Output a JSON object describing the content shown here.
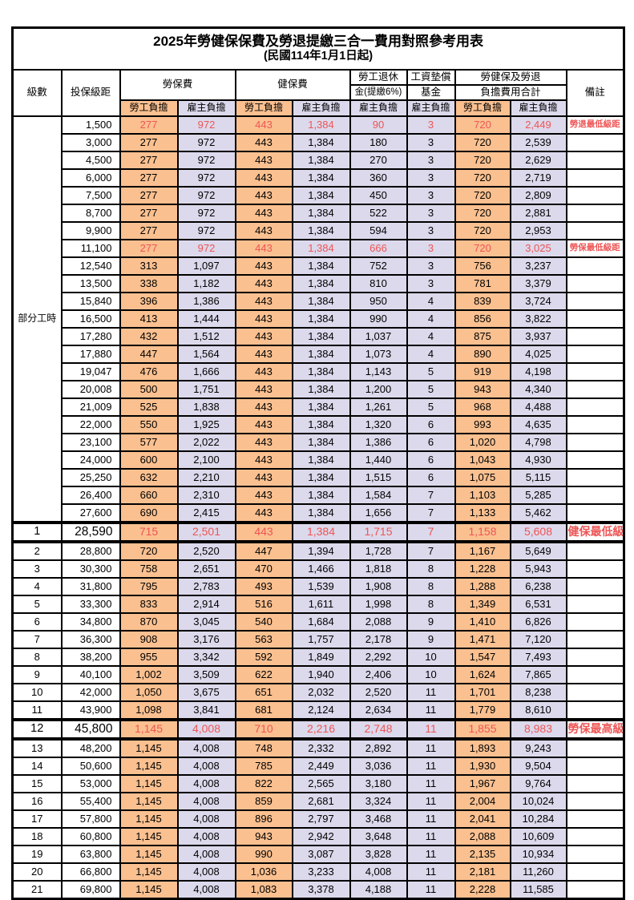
{
  "title": "2025年勞健保保費及勞退提繳三合一費用對照參考用表",
  "subtitle": "(民國114年1月1日起)",
  "header": {
    "level": "級數",
    "bracket": "投保級距",
    "labor_ins": "勞保費",
    "health_ins": "健保費",
    "pension_line1": "勞工退休",
    "pension_line2": "金(提繳6%)",
    "wage_fund_line1": "工資墊償",
    "wage_fund_line2": "基金",
    "total_line1": "勞健保及勞退",
    "total_line2": "負擔費用合計",
    "remark": "備註",
    "employee": "勞工負擔",
    "employer": "雇主負擔"
  },
  "part_time_label": "部分工時",
  "part_time_rowspan": 23,
  "colors": {
    "employee_bg": "#FAC090",
    "employer_bg": "#DCD9EC",
    "highlight_red": "#EE5555",
    "border": "#000000"
  },
  "rows": [
    {
      "level": "",
      "bracket": "1,500",
      "values": [
        "277",
        "972",
        "443",
        "1,384",
        "90",
        "3",
        "720",
        "2,449"
      ],
      "remark": "勞退最低級距",
      "red": true
    },
    {
      "level": "",
      "bracket": "3,000",
      "values": [
        "277",
        "972",
        "443",
        "1,384",
        "180",
        "3",
        "720",
        "2,539"
      ],
      "remark": ""
    },
    {
      "level": "",
      "bracket": "4,500",
      "values": [
        "277",
        "972",
        "443",
        "1,384",
        "270",
        "3",
        "720",
        "2,629"
      ],
      "remark": ""
    },
    {
      "level": "",
      "bracket": "6,000",
      "values": [
        "277",
        "972",
        "443",
        "1,384",
        "360",
        "3",
        "720",
        "2,719"
      ],
      "remark": ""
    },
    {
      "level": "",
      "bracket": "7,500",
      "values": [
        "277",
        "972",
        "443",
        "1,384",
        "450",
        "3",
        "720",
        "2,809"
      ],
      "remark": ""
    },
    {
      "level": "",
      "bracket": "8,700",
      "values": [
        "277",
        "972",
        "443",
        "1,384",
        "522",
        "3",
        "720",
        "2,881"
      ],
      "remark": ""
    },
    {
      "level": "",
      "bracket": "9,900",
      "values": [
        "277",
        "972",
        "443",
        "1,384",
        "594",
        "3",
        "720",
        "2,953"
      ],
      "remark": ""
    },
    {
      "level": "",
      "bracket": "11,100",
      "values": [
        "277",
        "972",
        "443",
        "1,384",
        "666",
        "3",
        "720",
        "3,025"
      ],
      "remark": "勞保最低級距",
      "red": true
    },
    {
      "level": "",
      "bracket": "12,540",
      "values": [
        "313",
        "1,097",
        "443",
        "1,384",
        "752",
        "3",
        "756",
        "3,237"
      ],
      "remark": ""
    },
    {
      "level": "",
      "bracket": "13,500",
      "values": [
        "338",
        "1,182",
        "443",
        "1,384",
        "810",
        "3",
        "781",
        "3,379"
      ],
      "remark": ""
    },
    {
      "level": "",
      "bracket": "15,840",
      "values": [
        "396",
        "1,386",
        "443",
        "1,384",
        "950",
        "4",
        "839",
        "3,724"
      ],
      "remark": ""
    },
    {
      "level": "",
      "bracket": "16,500",
      "values": [
        "413",
        "1,444",
        "443",
        "1,384",
        "990",
        "4",
        "856",
        "3,822"
      ],
      "remark": ""
    },
    {
      "level": "",
      "bracket": "17,280",
      "values": [
        "432",
        "1,512",
        "443",
        "1,384",
        "1,037",
        "4",
        "875",
        "3,937"
      ],
      "remark": ""
    },
    {
      "level": "",
      "bracket": "17,880",
      "values": [
        "447",
        "1,564",
        "443",
        "1,384",
        "1,073",
        "4",
        "890",
        "4,025"
      ],
      "remark": ""
    },
    {
      "level": "",
      "bracket": "19,047",
      "values": [
        "476",
        "1,666",
        "443",
        "1,384",
        "1,143",
        "5",
        "919",
        "4,198"
      ],
      "remark": ""
    },
    {
      "level": "",
      "bracket": "20,008",
      "values": [
        "500",
        "1,751",
        "443",
        "1,384",
        "1,200",
        "5",
        "943",
        "4,340"
      ],
      "remark": ""
    },
    {
      "level": "",
      "bracket": "21,009",
      "values": [
        "525",
        "1,838",
        "443",
        "1,384",
        "1,261",
        "5",
        "968",
        "4,488"
      ],
      "remark": ""
    },
    {
      "level": "",
      "bracket": "22,000",
      "values": [
        "550",
        "1,925",
        "443",
        "1,384",
        "1,320",
        "6",
        "993",
        "4,635"
      ],
      "remark": ""
    },
    {
      "level": "",
      "bracket": "23,100",
      "values": [
        "577",
        "2,022",
        "443",
        "1,384",
        "1,386",
        "6",
        "1,020",
        "4,798"
      ],
      "remark": ""
    },
    {
      "level": "",
      "bracket": "24,000",
      "values": [
        "600",
        "2,100",
        "443",
        "1,384",
        "1,440",
        "6",
        "1,043",
        "4,930"
      ],
      "remark": ""
    },
    {
      "level": "",
      "bracket": "25,250",
      "values": [
        "632",
        "2,210",
        "443",
        "1,384",
        "1,515",
        "6",
        "1,075",
        "5,115"
      ],
      "remark": ""
    },
    {
      "level": "",
      "bracket": "26,400",
      "values": [
        "660",
        "2,310",
        "443",
        "1,384",
        "1,584",
        "7",
        "1,103",
        "5,285"
      ],
      "remark": ""
    },
    {
      "level": "",
      "bracket": "27,600",
      "values": [
        "690",
        "2,415",
        "443",
        "1,384",
        "1,656",
        "7",
        "1,133",
        "5,462"
      ],
      "remark": ""
    },
    {
      "level": "1",
      "bracket": "28,590",
      "values": [
        "715",
        "2,501",
        "443",
        "1,384",
        "1,715",
        "7",
        "1,158",
        "5,608"
      ],
      "remark": "健保最低級距",
      "red": true,
      "heavy": true,
      "big": true
    },
    {
      "level": "2",
      "bracket": "28,800",
      "values": [
        "720",
        "2,520",
        "447",
        "1,394",
        "1,728",
        "7",
        "1,167",
        "5,649"
      ],
      "remark": ""
    },
    {
      "level": "3",
      "bracket": "30,300",
      "values": [
        "758",
        "2,651",
        "470",
        "1,466",
        "1,818",
        "8",
        "1,228",
        "5,943"
      ],
      "remark": ""
    },
    {
      "level": "4",
      "bracket": "31,800",
      "values": [
        "795",
        "2,783",
        "493",
        "1,539",
        "1,908",
        "8",
        "1,288",
        "6,238"
      ],
      "remark": ""
    },
    {
      "level": "5",
      "bracket": "33,300",
      "values": [
        "833",
        "2,914",
        "516",
        "1,611",
        "1,998",
        "8",
        "1,349",
        "6,531"
      ],
      "remark": ""
    },
    {
      "level": "6",
      "bracket": "34,800",
      "values": [
        "870",
        "3,045",
        "540",
        "1,684",
        "2,088",
        "9",
        "1,410",
        "6,826"
      ],
      "remark": ""
    },
    {
      "level": "7",
      "bracket": "36,300",
      "values": [
        "908",
        "3,176",
        "563",
        "1,757",
        "2,178",
        "9",
        "1,471",
        "7,120"
      ],
      "remark": ""
    },
    {
      "level": "8",
      "bracket": "38,200",
      "values": [
        "955",
        "3,342",
        "592",
        "1,849",
        "2,292",
        "10",
        "1,547",
        "7,493"
      ],
      "remark": ""
    },
    {
      "level": "9",
      "bracket": "40,100",
      "values": [
        "1,002",
        "3,509",
        "622",
        "1,940",
        "2,406",
        "10",
        "1,624",
        "7,865"
      ],
      "remark": ""
    },
    {
      "level": "10",
      "bracket": "42,000",
      "values": [
        "1,050",
        "3,675",
        "651",
        "2,032",
        "2,520",
        "11",
        "1,701",
        "8,238"
      ],
      "remark": ""
    },
    {
      "level": "11",
      "bracket": "43,900",
      "values": [
        "1,098",
        "3,841",
        "681",
        "2,124",
        "2,634",
        "11",
        "1,779",
        "8,610"
      ],
      "remark": ""
    },
    {
      "level": "12",
      "bracket": "45,800",
      "values": [
        "1,145",
        "4,008",
        "710",
        "2,216",
        "2,748",
        "11",
        "1,855",
        "8,983"
      ],
      "remark": "勞保最高級距",
      "red": true,
      "heavy": true,
      "big": true
    },
    {
      "level": "13",
      "bracket": "48,200",
      "values": [
        "1,145",
        "4,008",
        "748",
        "2,332",
        "2,892",
        "11",
        "1,893",
        "9,243"
      ],
      "remark": ""
    },
    {
      "level": "14",
      "bracket": "50,600",
      "values": [
        "1,145",
        "4,008",
        "785",
        "2,449",
        "3,036",
        "11",
        "1,930",
        "9,504"
      ],
      "remark": ""
    },
    {
      "level": "15",
      "bracket": "53,000",
      "values": [
        "1,145",
        "4,008",
        "822",
        "2,565",
        "3,180",
        "11",
        "1,967",
        "9,764"
      ],
      "remark": ""
    },
    {
      "level": "16",
      "bracket": "55,400",
      "values": [
        "1,145",
        "4,008",
        "859",
        "2,681",
        "3,324",
        "11",
        "2,004",
        "10,024"
      ],
      "remark": ""
    },
    {
      "level": "17",
      "bracket": "57,800",
      "values": [
        "1,145",
        "4,008",
        "896",
        "2,797",
        "3,468",
        "11",
        "2,041",
        "10,284"
      ],
      "remark": ""
    },
    {
      "level": "18",
      "bracket": "60,800",
      "values": [
        "1,145",
        "4,008",
        "943",
        "2,942",
        "3,648",
        "11",
        "2,088",
        "10,609"
      ],
      "remark": ""
    },
    {
      "level": "19",
      "bracket": "63,800",
      "values": [
        "1,145",
        "4,008",
        "990",
        "3,087",
        "3,828",
        "11",
        "2,135",
        "10,934"
      ],
      "remark": ""
    },
    {
      "level": "20",
      "bracket": "66,800",
      "values": [
        "1,145",
        "4,008",
        "1,036",
        "3,233",
        "4,008",
        "11",
        "2,181",
        "11,260"
      ],
      "remark": ""
    },
    {
      "level": "21",
      "bracket": "69,800",
      "values": [
        "1,145",
        "4,008",
        "1,083",
        "3,378",
        "4,188",
        "11",
        "2,228",
        "11,585"
      ],
      "remark": ""
    }
  ]
}
